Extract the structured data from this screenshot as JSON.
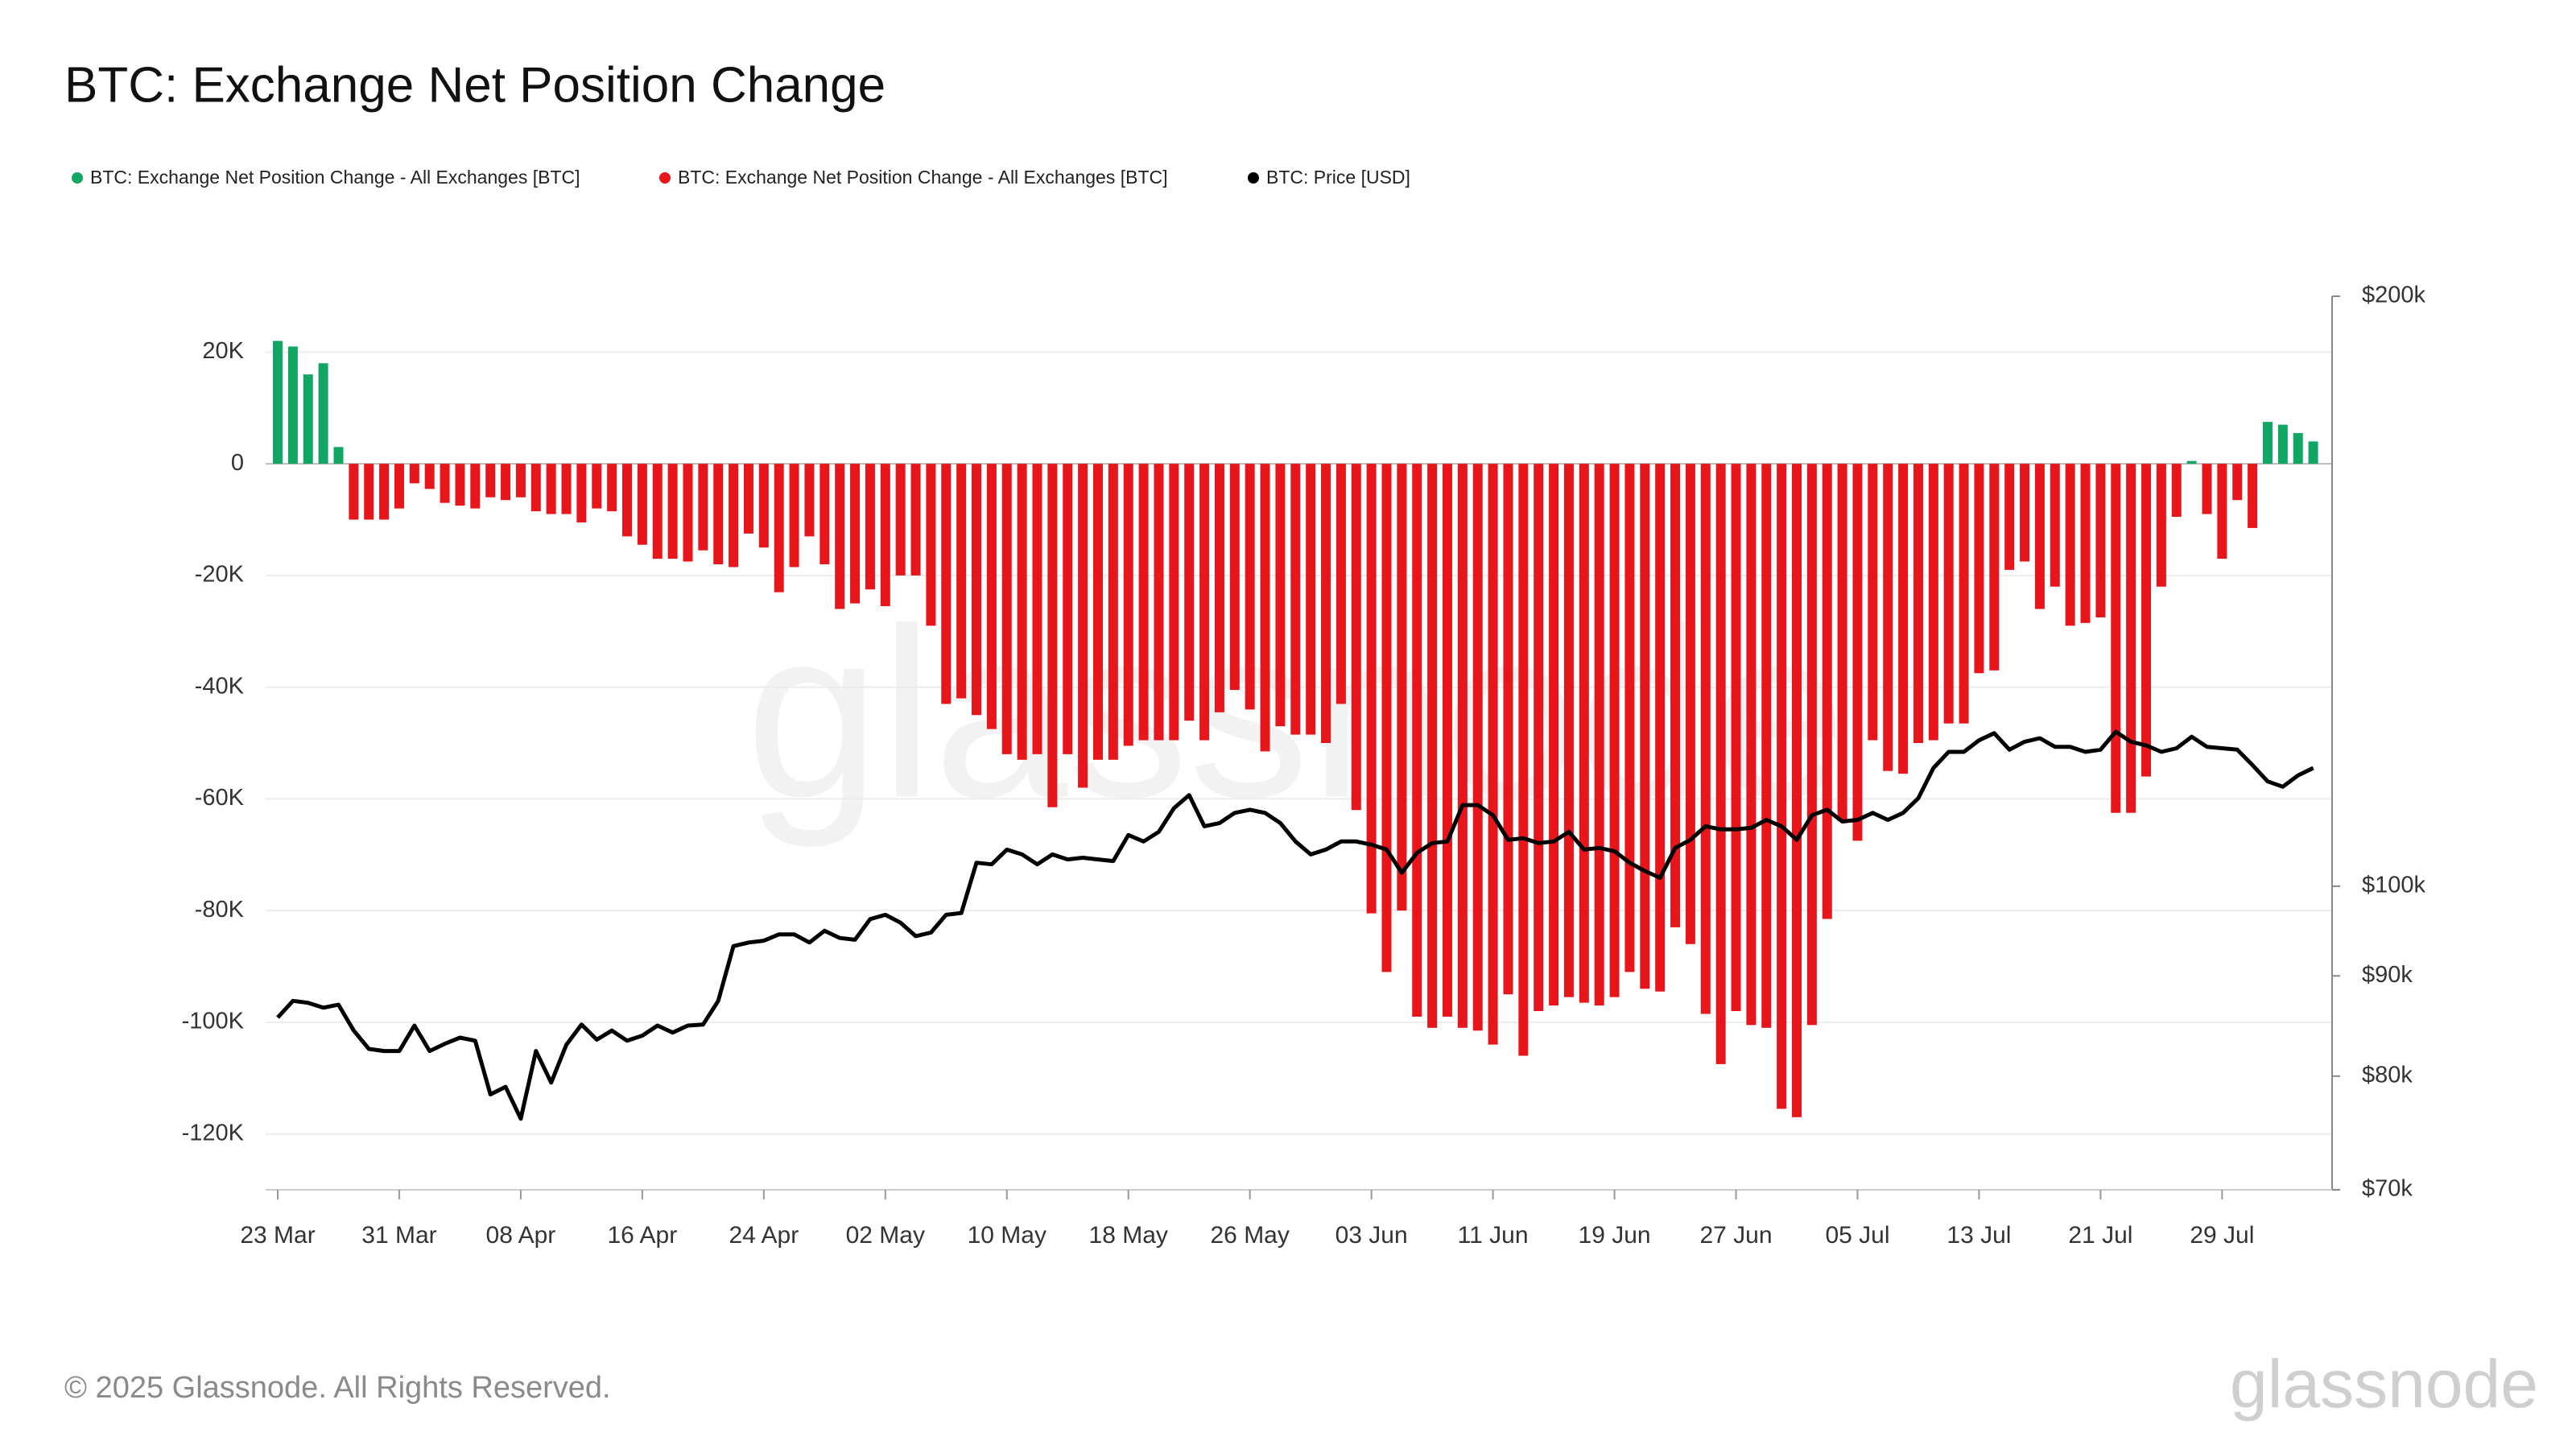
{
  "chart_data": {
    "type": "bar",
    "title": "BTC: Exchange Net Position Change",
    "legend": "top-left",
    "grid": true,
    "watermark": "glassnode",
    "logo": "glassnode",
    "copyright": "© 2025 Glassnode. All Rights Reserved.",
    "categories": [
      "23 Mar",
      null,
      null,
      null,
      null,
      null,
      null,
      null,
      "31 Mar",
      null,
      null,
      null,
      null,
      null,
      null,
      null,
      "08 Apr",
      null,
      null,
      null,
      null,
      null,
      null,
      null,
      "16 Apr",
      null,
      null,
      null,
      null,
      null,
      null,
      null,
      "24 Apr",
      null,
      null,
      null,
      null,
      null,
      null,
      null,
      "02 May",
      null,
      null,
      null,
      null,
      null,
      null,
      null,
      "10 May",
      null,
      null,
      null,
      null,
      null,
      null,
      null,
      "18 May",
      null,
      null,
      null,
      null,
      null,
      null,
      null,
      "26 May",
      null,
      null,
      null,
      null,
      null,
      null,
      null,
      "03 Jun",
      null,
      null,
      null,
      null,
      null,
      null,
      null,
      "11 Jun",
      null,
      null,
      null,
      null,
      null,
      null,
      null,
      "19 Jun",
      null,
      null,
      null,
      null,
      null,
      null,
      null,
      "27 Jun",
      null,
      null,
      null,
      null,
      null,
      null,
      null,
      "05 Jul",
      null,
      null,
      null,
      null,
      null,
      null,
      null,
      "13 Jul",
      null,
      null,
      null,
      null,
      null,
      null,
      null,
      "21 Jul",
      null,
      null,
      null,
      null,
      null,
      null,
      null,
      "29 Jul",
      null,
      null,
      null,
      null,
      null,
      null
    ],
    "ylim": [
      -130000,
      30000
    ],
    "yticks": [
      {
        "value": 20000,
        "label": "20K"
      },
      0,
      {
        "value": -20000,
        "label": "-20K"
      },
      {
        "value": -40000,
        "label": "-40K"
      },
      {
        "value": -60000,
        "label": "-60K"
      },
      {
        "value": -80000,
        "label": "-80K"
      },
      {
        "value": -100000,
        "label": "-100K"
      },
      {
        "value": -120000,
        "label": "-120K"
      }
    ],
    "y2lim": [
      70000,
      200000
    ],
    "y2scale": "log",
    "y2ticks": [
      {
        "value": 70000,
        "label": "$70k"
      },
      {
        "value": 80000,
        "label": "$80k"
      },
      {
        "value": 90000,
        "label": "$90k"
      },
      {
        "value": 100000,
        "label": "$100k"
      },
      {
        "value": 200000,
        "label": "$200k"
      }
    ],
    "series": [
      {
        "name": "BTC: Exchange Net Position Change - All Exchanges [BTC]",
        "color": "#12a665",
        "type": "bar",
        "values": [
          22000,
          21000,
          16000,
          18000,
          3000,
          null,
          null,
          null,
          null,
          null,
          null,
          null,
          null,
          null,
          null,
          null,
          null,
          null,
          null,
          null,
          null,
          null,
          null,
          null,
          null,
          null,
          null,
          null,
          null,
          null,
          null,
          null,
          null,
          null,
          null,
          null,
          null,
          null,
          null,
          null,
          null,
          null,
          null,
          null,
          null,
          null,
          null,
          null,
          null,
          null,
          null,
          null,
          null,
          null,
          null,
          null,
          null,
          null,
          null,
          null,
          null,
          null,
          null,
          null,
          null,
          null,
          null,
          null,
          null,
          null,
          null,
          null,
          null,
          null,
          null,
          null,
          null,
          null,
          null,
          null,
          null,
          null,
          null,
          null,
          null,
          null,
          null,
          null,
          null,
          null,
          null,
          null,
          null,
          null,
          null,
          null,
          null,
          null,
          null,
          null,
          null,
          null,
          null,
          null,
          null,
          null,
          null,
          null,
          null,
          null,
          null,
          null,
          null,
          null,
          null,
          null,
          null,
          null,
          null,
          null,
          null,
          null,
          null,
          null,
          null,
          null,
          500,
          null,
          null,
          null,
          null,
          7500,
          7000,
          5500,
          4000
        ]
      },
      {
        "name": "BTC: Exchange Net Position Change - All Exchanges [BTC]",
        "color": "#e8161b",
        "type": "bar",
        "values": [
          null,
          null,
          null,
          null,
          null,
          -10000,
          -10000,
          -10000,
          -8000,
          -3500,
          -4500,
          -7000,
          -7500,
          -8000,
          -6000,
          -6500,
          -6000,
          -8500,
          -9000,
          -9000,
          -10500,
          -8000,
          -8500,
          -13000,
          -14500,
          -17000,
          -17000,
          -17500,
          -15500,
          -18000,
          -18500,
          -12500,
          -15000,
          -23000,
          -18500,
          -13000,
          -18000,
          -26000,
          -25000,
          -22500,
          -25500,
          -20000,
          -20000,
          -29000,
          -43000,
          -42000,
          -45000,
          -47500,
          -52000,
          -53000,
          -52000,
          -61500,
          -52000,
          -58000,
          -53000,
          -53000,
          -50500,
          -49500,
          -49500,
          -49500,
          -46000,
          -49500,
          -44500,
          -40500,
          -44000,
          -51500,
          -47000,
          -48500,
          -48500,
          -50000,
          -43000,
          -62000,
          -80500,
          -91000,
          -80000,
          -99000,
          -101000,
          -99000,
          -101000,
          -101500,
          -104000,
          -95000,
          -106000,
          -98000,
          -97000,
          -95500,
          -96500,
          -97000,
          -95500,
          -91000,
          -94000,
          -94500,
          -83000,
          -86000,
          -98500,
          -107500,
          -98000,
          -100500,
          -101000,
          -115500,
          -117000,
          -100500,
          -81500,
          -64000,
          -67500,
          -49500,
          -55000,
          -55500,
          -50000,
          -49500,
          -46500,
          -46500,
          -37500,
          -37000,
          -19000,
          -17500,
          -26000,
          -22000,
          -29000,
          -28500,
          -27500,
          -62500,
          -62500,
          -56000,
          -22000,
          -9500,
          null,
          -9000,
          -17000,
          -6500,
          -11500,
          null,
          null,
          null,
          null
        ]
      },
      {
        "name": "BTC: Price [USD]",
        "color": "#000000",
        "type": "line",
        "axis": "y2",
        "values": [
          85700,
          87400,
          87200,
          86700,
          87000,
          84400,
          82600,
          82400,
          82400,
          84900,
          82400,
          83100,
          83700,
          83400,
          78300,
          79000,
          76100,
          82400,
          79400,
          83000,
          85000,
          83500,
          84400,
          83400,
          83900,
          84900,
          84200,
          84900,
          85000,
          87400,
          93200,
          93600,
          93800,
          94500,
          94500,
          93600,
          94900,
          94100,
          93900,
          96200,
          96700,
          95800,
          94300,
          94700,
          96700,
          96900,
          102800,
          102600,
          104400,
          103800,
          102600,
          103800,
          103200,
          103400,
          103200,
          103000,
          106200,
          105400,
          106600,
          109600,
          111300,
          107300,
          107700,
          109000,
          109400,
          109000,
          107700,
          105400,
          103800,
          104400,
          105400,
          105400,
          105000,
          104400,
          101600,
          104000,
          105200,
          105400,
          110000,
          110000,
          108700,
          105600,
          105800,
          105200,
          105400,
          106600,
          104400,
          104600,
          104200,
          102800,
          101800,
          101000,
          104600,
          105600,
          107300,
          106900,
          106900,
          107100,
          108100,
          107300,
          105600,
          108700,
          109400,
          107900,
          108100,
          109000,
          108100,
          109000,
          110900,
          114900,
          117100,
          117100,
          118700,
          119700,
          117400,
          118500,
          119000,
          117800,
          117800,
          117100,
          117400,
          119900,
          118500,
          118000,
          117100,
          117600,
          119200,
          117800,
          117600,
          117400,
          115300,
          113100,
          112400,
          113900,
          114900
        ]
      }
    ]
  }
}
